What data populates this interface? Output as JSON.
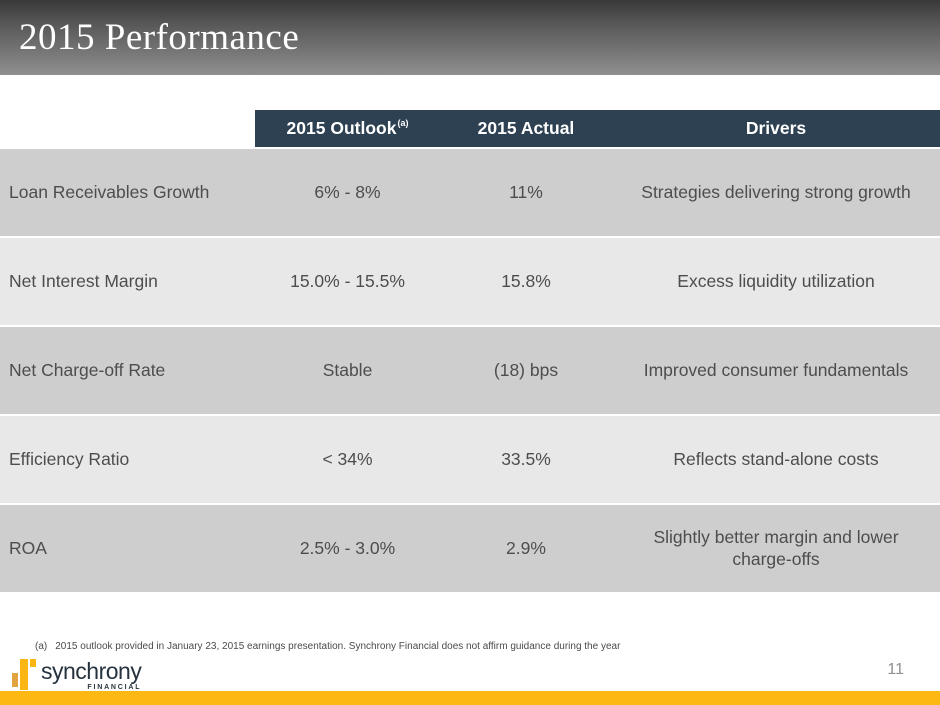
{
  "title": "2015 Performance",
  "table": {
    "columns": [
      {
        "label": "2015 Outlook",
        "sup": "(a)"
      },
      {
        "label": "2015 Actual",
        "sup": ""
      },
      {
        "label": "Drivers",
        "sup": ""
      }
    ],
    "rows": [
      {
        "metric": "Loan Receivables Growth",
        "outlook": "6% - 8%",
        "actual": "11%",
        "drivers": "Strategies delivering strong growth"
      },
      {
        "metric": "Net Interest Margin",
        "outlook": "15.0% - 15.5%",
        "actual": "15.8%",
        "drivers": "Excess liquidity utilization"
      },
      {
        "metric": "Net Charge-off Rate",
        "outlook": "Stable",
        "actual": "(18) bps",
        "drivers": "Improved consumer fundamentals"
      },
      {
        "metric": "Efficiency Ratio",
        "outlook": "< 34%",
        "actual": "33.5%",
        "drivers": "Reflects stand-alone costs"
      },
      {
        "metric": "ROA",
        "outlook": "2.5% - 3.0%",
        "actual": "2.9%",
        "drivers": "Slightly better margin and lower charge-offs"
      }
    ]
  },
  "footnote": {
    "marker": "(a)",
    "text": "2015 outlook provided in January 23, 2015 earnings presentation. Synchrony Financial does not affirm guidance during the year"
  },
  "footer": {
    "logo_text": "synchrony",
    "logo_subtext": "FINANCIAL",
    "page_number": "11"
  },
  "colors": {
    "accent_yellow": "#fdb813",
    "table_header_slate": "#2d4152",
    "row_dark": "#cecece",
    "row_light": "#e8e8e8",
    "title_gradient_top": "#383838",
    "title_gradient_bottom": "#8f8f8f",
    "logo_navy": "#26333f",
    "logo_gold": "#fcb614"
  }
}
